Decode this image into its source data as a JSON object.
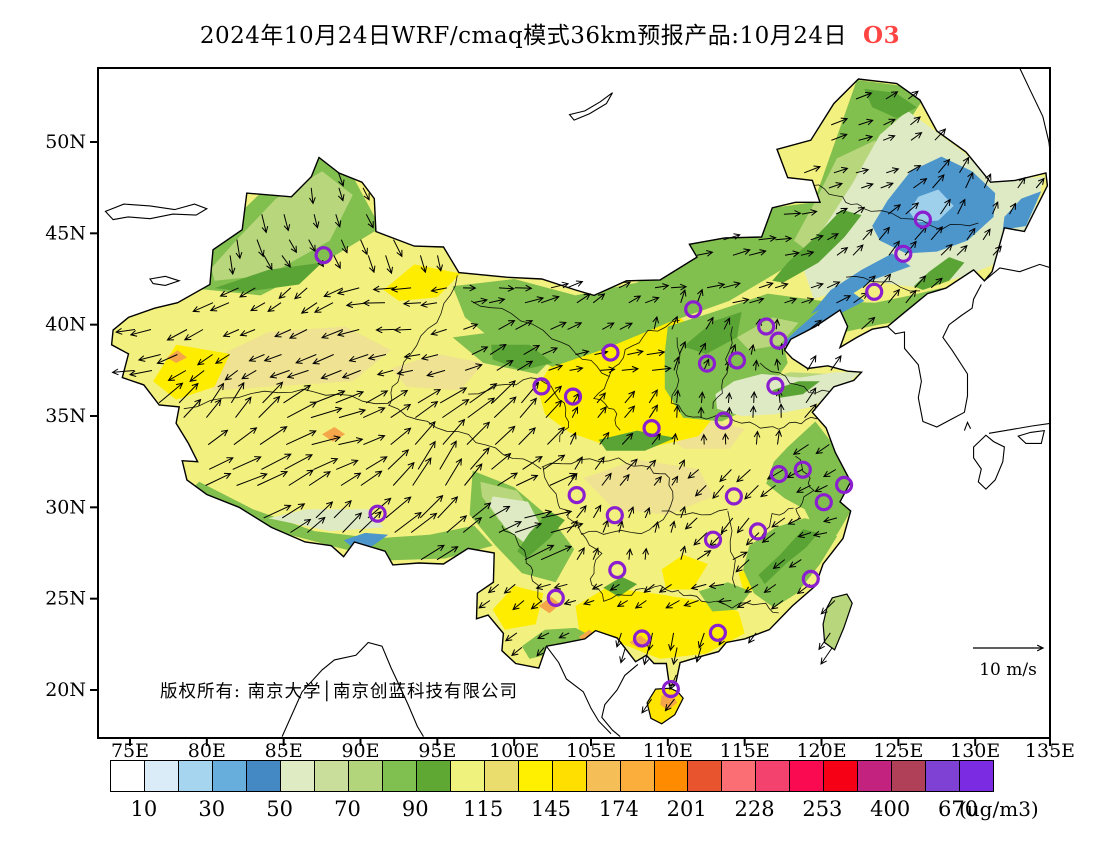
{
  "title": {
    "text": "2024年10月24日WRF/cmaq模式36km预报产品:10月24日",
    "species_label": "O3",
    "species_color": "#FF4444"
  },
  "axes": {
    "lat_labels": [
      "50N",
      "45N",
      "40N",
      "35N",
      "30N",
      "25N",
      "20N"
    ],
    "lon_labels": [
      "75E",
      "80E",
      "85E",
      "90E",
      "95E",
      "100E",
      "105E",
      "110E",
      "115E",
      "120E",
      "125E",
      "130E",
      "135E"
    ]
  },
  "colorbar": {
    "tick_labels": [
      "10",
      "30",
      "50",
      "70",
      "90",
      "115",
      "145",
      "174",
      "201",
      "228",
      "253",
      "400",
      "670"
    ],
    "unit_label": "(ug/m3)",
    "cell_colors": [
      "#FFFFFF",
      "#D9ECF8",
      "#A5D5EF",
      "#68AEDC",
      "#4489C4",
      "#DFEBC2",
      "#C8DE9A",
      "#B2D47A",
      "#7FC050",
      "#60A834",
      "#EFF37E",
      "#EBDC6E",
      "#FFF000",
      "#FFDF00",
      "#F6BE56",
      "#FCAE3C",
      "#FF8C00",
      "#E8542E",
      "#FB6E74",
      "#F4426E",
      "#FA0A50",
      "#F50014",
      "#C3227E",
      "#B04058",
      "#7F41D4",
      "#7B2BE2"
    ]
  },
  "wind_legend": {
    "label": "10 m/s"
  },
  "watermark": {
    "text": "版权所有: 南京大学│南京创蓝科技有限公司"
  },
  "map_data": {
    "species": "O3",
    "unit": "ug/m3",
    "land_base_color": "#F2F07E",
    "city_marker_color": "#8B1FD0",
    "city_markers_lonlat": [
      [
        87.6,
        43.8
      ],
      [
        126.6,
        45.75
      ],
      [
        125.32,
        43.88
      ],
      [
        123.43,
        41.8
      ],
      [
        116.4,
        39.9
      ],
      [
        117.2,
        39.13
      ],
      [
        114.5,
        38.04
      ],
      [
        112.55,
        37.87
      ],
      [
        111.65,
        40.84
      ],
      [
        106.27,
        38.47
      ],
      [
        101.78,
        36.62
      ],
      [
        103.83,
        36.06
      ],
      [
        108.94,
        34.34
      ],
      [
        113.63,
        34.75
      ],
      [
        117.0,
        36.65
      ],
      [
        118.78,
        32.06
      ],
      [
        117.23,
        31.82
      ],
      [
        121.47,
        31.23
      ],
      [
        120.15,
        30.28
      ],
      [
        114.3,
        30.6
      ],
      [
        104.07,
        30.67
      ],
      [
        106.55,
        29.57
      ],
      [
        112.94,
        28.23
      ],
      [
        115.86,
        28.68
      ],
      [
        106.71,
        26.57
      ],
      [
        102.71,
        25.04
      ],
      [
        91.11,
        29.65
      ],
      [
        119.3,
        26.08
      ],
      [
        113.26,
        23.13
      ],
      [
        108.32,
        22.82
      ],
      [
        110.2,
        20.05
      ]
    ]
  }
}
